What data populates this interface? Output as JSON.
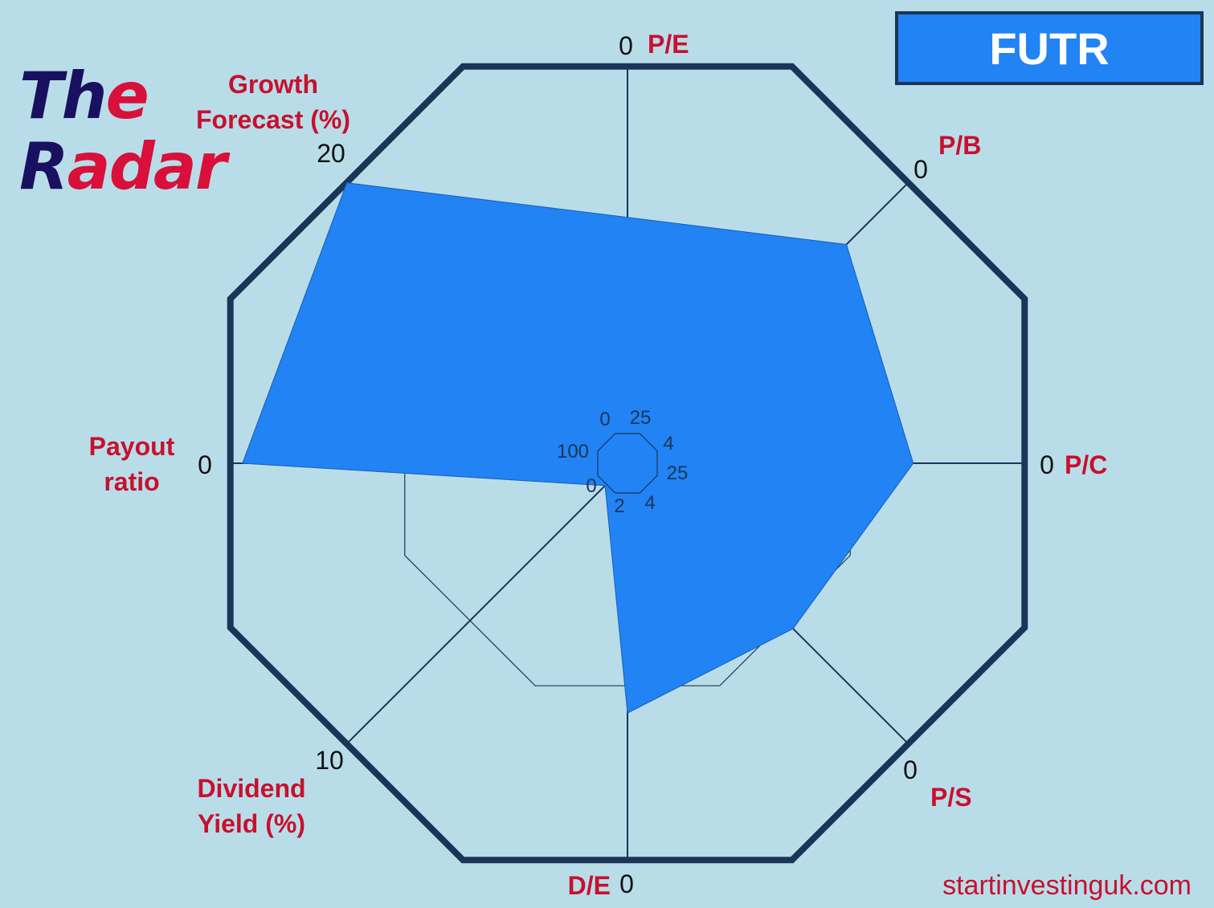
{
  "brand": {
    "line1_prefix": "Th",
    "line1_rest": "e",
    "line2_prefix": "R",
    "line2_rest": "adar",
    "prefix_color": "#1a1060",
    "rest_color": "#d8103a"
  },
  "ticker": "FUTR",
  "website": "startinvestinguk.com",
  "colors": {
    "background": "#b9dde8",
    "fill": "#2183f4",
    "frame": "#1a3558",
    "label": "#c8102e"
  },
  "chart_data": {
    "type": "radar",
    "axes": [
      {
        "name": "P/E",
        "label_lines": [
          "P/E"
        ],
        "outer_tick": "0",
        "inner_tick": "25",
        "value": 0.62
      },
      {
        "name": "P/B",
        "label_lines": [
          "P/B"
        ],
        "outer_tick": "0",
        "inner_tick": "4",
        "value": 0.78
      },
      {
        "name": "P/C",
        "label_lines": [
          "P/C"
        ],
        "outer_tick": "0",
        "inner_tick": "25",
        "value": 0.72
      },
      {
        "name": "P/S",
        "label_lines": [
          "P/S"
        ],
        "outer_tick": "0",
        "inner_tick": "4",
        "value": 0.59
      },
      {
        "name": "D/E",
        "label_lines": [
          "D/E"
        ],
        "outer_tick": "0",
        "inner_tick": "2",
        "value": 0.63
      },
      {
        "name": "Dividend Yield (%)",
        "label_lines": [
          "Dividend",
          "Yield (%)"
        ],
        "outer_tick": "10",
        "inner_tick": "0",
        "value": 0.08
      },
      {
        "name": "Payout ratio",
        "label_lines": [
          "Payout",
          "ratio"
        ],
        "outer_tick": "0",
        "inner_tick": "100",
        "value": 0.97
      },
      {
        "name": "Growth Forecast (%)",
        "label_lines": [
          "Growth",
          "Forecast (%)"
        ],
        "outer_tick": "20",
        "inner_tick": "0",
        "value": 1.0
      }
    ]
  }
}
